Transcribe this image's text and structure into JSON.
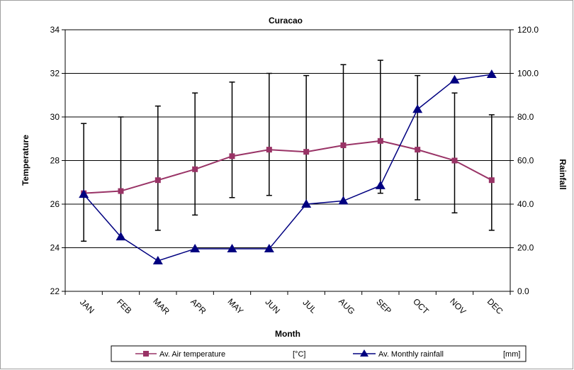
{
  "chart_data": {
    "type": "line",
    "title": "Curacao",
    "xlabel": "Month",
    "ylabel_left": "Temperature",
    "ylabel_right": "Rainfall",
    "categories": [
      "JAN",
      "FEB",
      "MAR",
      "APR",
      "MAY",
      "JUN",
      "JUL",
      "AUG",
      "SEP",
      "OCT",
      "NOV",
      "DEC"
    ],
    "y_left": {
      "min": 22,
      "max": 34,
      "step": 2,
      "ticks": [
        "22",
        "24",
        "26",
        "28",
        "30",
        "32",
        "34"
      ]
    },
    "y_right": {
      "min": 0,
      "max": 120,
      "step": 20,
      "ticks": [
        "0.0",
        "20.0",
        "40.0",
        "60.0",
        "80.0",
        "100.0",
        "120.0"
      ]
    },
    "grid": "horizontal",
    "legend_position": "bottom",
    "series": [
      {
        "name": "Av. Air temperature",
        "unit": "[°C]",
        "axis": "left",
        "color": "#993366",
        "marker": "square",
        "values": [
          26.5,
          26.6,
          27.1,
          27.6,
          28.2,
          28.5,
          28.4,
          28.7,
          28.9,
          28.5,
          28.0,
          27.1
        ],
        "error_low": [
          24.3,
          24.5,
          24.8,
          25.5,
          26.3,
          26.4,
          26.0,
          26.1,
          26.5,
          26.2,
          25.6,
          24.8
        ],
        "error_high": [
          29.7,
          30.0,
          30.5,
          31.1,
          31.6,
          32.0,
          31.9,
          32.4,
          32.6,
          31.9,
          31.1,
          30.1
        ]
      },
      {
        "name": "Av. Monthly rainfall",
        "unit": "[mm]",
        "axis": "right",
        "color": "#000080",
        "marker": "triangle",
        "values": [
          44.5,
          25.0,
          14.0,
          19.5,
          19.5,
          19.5,
          40.0,
          41.5,
          48.5,
          83.5,
          97.0,
          99.5
        ]
      }
    ]
  }
}
